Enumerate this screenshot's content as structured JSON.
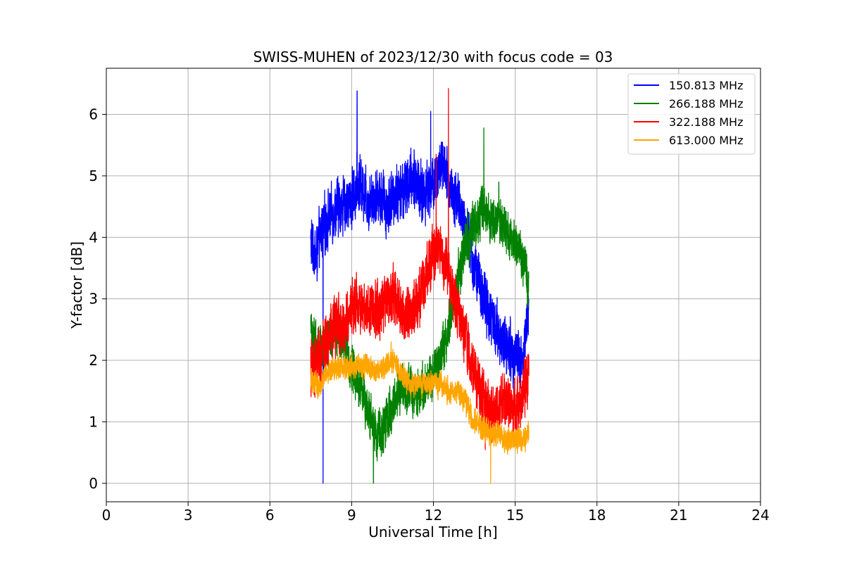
{
  "chart_data": {
    "type": "line",
    "title": "SWISS-MUHEN of 2023/12/30 with focus code = 03",
    "xlabel": "Universal Time [h]",
    "ylabel": "Y-factor [dB]",
    "xlim": [
      0,
      24
    ],
    "ylim": [
      -0.3,
      6.75
    ],
    "xticks": [
      0,
      3,
      6,
      9,
      12,
      15,
      18,
      21,
      24
    ],
    "yticks": [
      0,
      1,
      2,
      3,
      4,
      5,
      6
    ],
    "grid": true,
    "legend_position": "top-right",
    "series": [
      {
        "name": "150.813 MHz",
        "color": "#0000ff",
        "x": [
          7.5,
          7.7,
          7.9,
          8.0,
          8.3,
          8.6,
          9.0,
          9.3,
          9.6,
          10.0,
          10.3,
          10.6,
          11.0,
          11.3,
          11.6,
          12.0,
          12.3,
          12.6,
          12.9,
          13.2,
          13.5,
          13.8,
          14.1,
          14.4,
          14.7,
          15.0,
          15.3,
          15.5
        ],
        "y": [
          3.9,
          3.7,
          4.1,
          4.2,
          4.4,
          4.5,
          4.6,
          4.9,
          4.6,
          4.7,
          4.5,
          4.7,
          4.8,
          5.0,
          4.7,
          4.9,
          5.2,
          4.8,
          4.6,
          4.1,
          3.5,
          3.1,
          2.7,
          2.4,
          2.2,
          2.1,
          2.0,
          2.9
        ],
        "spike_min": [
          [
            7.95,
            0.0
          ]
        ],
        "spike_max": [
          [
            9.2,
            6.38
          ],
          [
            11.9,
            6.05
          ]
        ],
        "noise": 0.35
      },
      {
        "name": "266.188 MHz",
        "color": "#008000",
        "x": [
          7.5,
          7.8,
          8.1,
          8.4,
          8.7,
          9.0,
          9.3,
          9.6,
          9.9,
          10.2,
          10.5,
          10.8,
          11.1,
          11.4,
          11.7,
          12.0,
          12.3,
          12.6,
          12.9,
          13.2,
          13.5,
          13.8,
          14.1,
          14.4,
          14.7,
          15.0,
          15.3,
          15.5
        ],
        "y": [
          2.4,
          2.2,
          2.3,
          2.5,
          2.3,
          1.9,
          1.6,
          1.2,
          0.8,
          0.9,
          1.3,
          1.5,
          1.6,
          1.4,
          1.6,
          1.8,
          2.1,
          2.6,
          3.3,
          3.9,
          4.2,
          4.5,
          4.3,
          4.2,
          4.1,
          3.9,
          3.6,
          3.1
        ],
        "spike_min": [
          [
            9.8,
            0.0
          ]
        ],
        "spike_max": [
          [
            13.85,
            5.78
          ],
          [
            14.4,
            4.9
          ]
        ],
        "noise": 0.3
      },
      {
        "name": "322.188 MHz",
        "color": "#ff0000",
        "x": [
          7.5,
          7.8,
          8.1,
          8.4,
          8.7,
          9.0,
          9.3,
          9.6,
          9.9,
          10.2,
          10.5,
          10.8,
          11.1,
          11.4,
          11.7,
          12.0,
          12.3,
          12.6,
          12.9,
          13.2,
          13.5,
          13.8,
          14.1,
          14.4,
          14.7,
          15.0,
          15.3,
          15.5
        ],
        "y": [
          1.9,
          2.0,
          2.3,
          2.6,
          2.5,
          2.9,
          2.9,
          2.9,
          2.8,
          3.0,
          3.1,
          2.8,
          2.7,
          2.9,
          3.4,
          3.8,
          3.8,
          3.3,
          2.8,
          2.3,
          1.8,
          1.4,
          1.1,
          1.2,
          1.3,
          1.2,
          1.4,
          1.8
        ],
        "spike_min": [
          [
            13.9,
            0.55
          ]
        ],
        "spike_max": [
          [
            12.55,
            6.42
          ],
          [
            12.1,
            5.35
          ]
        ],
        "noise": 0.35
      },
      {
        "name": "613.000 MHz",
        "color": "#ffa500",
        "x": [
          7.5,
          7.8,
          8.1,
          8.4,
          8.7,
          9.0,
          9.3,
          9.6,
          9.9,
          10.2,
          10.5,
          10.8,
          11.1,
          11.4,
          11.7,
          12.0,
          12.3,
          12.6,
          12.9,
          13.2,
          13.5,
          13.8,
          14.1,
          14.4,
          14.7,
          15.0,
          15.3,
          15.5
        ],
        "y": [
          1.7,
          1.6,
          1.8,
          1.9,
          1.9,
          1.9,
          1.9,
          1.9,
          1.8,
          1.9,
          2.0,
          1.8,
          1.6,
          1.6,
          1.6,
          1.6,
          1.6,
          1.5,
          1.5,
          1.3,
          1.0,
          0.9,
          0.8,
          0.8,
          0.7,
          0.7,
          0.7,
          0.8
        ],
        "spike_min": [
          [
            14.1,
            0.0
          ]
        ],
        "spike_max": [
          [
            10.45,
            2.3
          ]
        ],
        "noise": 0.15
      }
    ]
  }
}
